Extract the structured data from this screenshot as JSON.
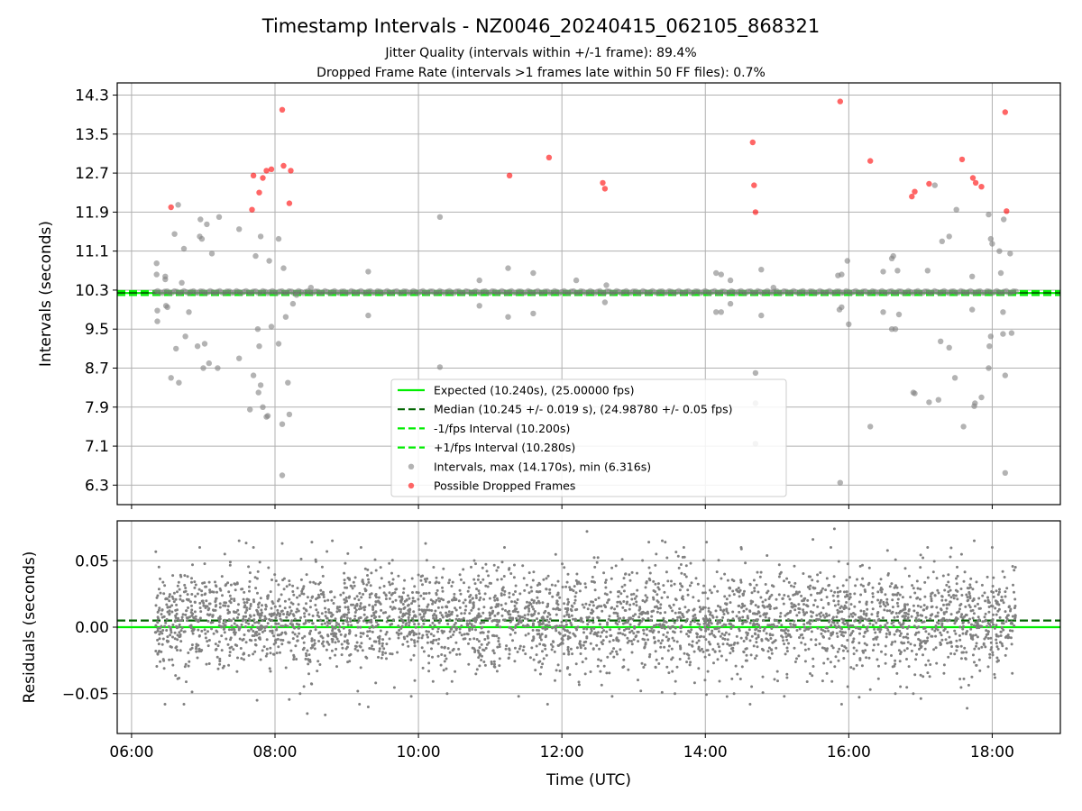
{
  "header": {
    "title": "Timestamp Intervals - NZ0046_20240415_062105_868321",
    "subtitle_1": "Jitter Quality (intervals within +/-1 frame): 89.4%",
    "subtitle_2": "Dropped Frame Rate (intervals >1 frames late within 50 FF files): 0.7%"
  },
  "colors": {
    "expected": "#00ee00",
    "median": "#006400",
    "minus_fps": "#00ee00",
    "plus_fps": "#00ee00",
    "intervals": "#808080",
    "dropped": "#ff0000",
    "grid": "#b0b0b0"
  },
  "chart_data": [
    {
      "type": "scatter",
      "ylabel": "Intervals (seconds)",
      "xlabel": "",
      "xlim": [
        5.8,
        18.95
      ],
      "ylim": [
        5.9,
        14.55
      ],
      "x_units": "hours UTC",
      "grid": true,
      "yticks": [
        6.3,
        7.1,
        7.9,
        8.7,
        9.5,
        10.3,
        11.1,
        11.9,
        12.7,
        13.5,
        14.3
      ],
      "ytick_labels": [
        "6.3",
        "7.1",
        "7.9",
        "8.7",
        "9.5",
        "10.3",
        "11.1",
        "11.9",
        "12.7",
        "13.5",
        "14.3"
      ],
      "legend_position": "lower-center",
      "hlines": [
        {
          "name": "expected",
          "y": 10.24,
          "style": "solid"
        },
        {
          "name": "median",
          "y": 10.245,
          "style": "dashed"
        },
        {
          "name": "minus_fps",
          "y": 10.2,
          "style": "dashed"
        },
        {
          "name": "plus_fps",
          "y": 10.28,
          "style": "dashed"
        }
      ],
      "legend": [
        {
          "key": "expected",
          "label": "Expected (10.240s), (25.00000 fps)",
          "kind": "line"
        },
        {
          "key": "median",
          "label": "Median (10.245 +/- 0.019 s), (24.98780 +/- 0.05 fps)",
          "kind": "dashed"
        },
        {
          "key": "minus_fps",
          "label": "-1/fps Interval (10.200s)",
          "kind": "dashed"
        },
        {
          "key": "plus_fps",
          "label": "+1/fps Interval (10.280s)",
          "kind": "dashed"
        },
        {
          "key": "intervals",
          "label": "Intervals, max (14.170s), min (6.316s)",
          "kind": "marker"
        },
        {
          "key": "dropped",
          "label": "Possible Dropped Frames",
          "kind": "marker"
        }
      ],
      "series": [
        {
          "name": "Intervals, max (14.170s), min (6.316s)",
          "key": "intervals",
          "points": [
            [
              6.35,
              10.85
            ],
            [
              6.35,
              10.62
            ],
            [
              6.36,
              9.88
            ],
            [
              6.36,
              9.66
            ],
            [
              6.47,
              10.58
            ],
            [
              6.47,
              10.52
            ],
            [
              6.48,
              9.98
            ],
            [
              6.5,
              9.95
            ],
            [
              6.55,
              8.5
            ],
            [
              6.6,
              11.45
            ],
            [
              6.62,
              9.1
            ],
            [
              6.65,
              12.05
            ],
            [
              6.66,
              8.4
            ],
            [
              6.7,
              10.45
            ],
            [
              6.73,
              11.15
            ],
            [
              6.75,
              9.35
            ],
            [
              6.8,
              9.85
            ],
            [
              6.92,
              9.15
            ],
            [
              6.95,
              11.4
            ],
            [
              6.96,
              11.75
            ],
            [
              6.98,
              11.35
            ],
            [
              7.0,
              8.7
            ],
            [
              7.02,
              9.2
            ],
            [
              7.05,
              11.65
            ],
            [
              7.08,
              8.8
            ],
            [
              7.12,
              11.05
            ],
            [
              7.2,
              8.7
            ],
            [
              7.22,
              11.8
            ],
            [
              7.5,
              11.55
            ],
            [
              7.5,
              8.9
            ],
            [
              7.65,
              7.85
            ],
            [
              7.7,
              8.55
            ],
            [
              7.73,
              11.0
            ],
            [
              7.76,
              9.5
            ],
            [
              7.77,
              8.2
            ],
            [
              7.78,
              9.15
            ],
            [
              7.8,
              8.35
            ],
            [
              7.8,
              11.4
            ],
            [
              7.83,
              7.9
            ],
            [
              7.88,
              7.7
            ],
            [
              7.9,
              7.72
            ],
            [
              7.92,
              10.9
            ],
            [
              7.95,
              9.55
            ],
            [
              8.05,
              9.2
            ],
            [
              8.05,
              11.35
            ],
            [
              8.1,
              6.5
            ],
            [
              8.1,
              7.55
            ],
            [
              8.12,
              10.75
            ],
            [
              8.15,
              9.75
            ],
            [
              8.18,
              8.4
            ],
            [
              8.2,
              7.75
            ],
            [
              8.25,
              10.02
            ],
            [
              8.3,
              10.2
            ],
            [
              8.5,
              10.35
            ],
            [
              9.3,
              10.68
            ],
            [
              9.3,
              9.78
            ],
            [
              10.3,
              11.8
            ],
            [
              10.3,
              8.72
            ],
            [
              10.85,
              10.5
            ],
            [
              10.85,
              9.98
            ],
            [
              11.25,
              10.75
            ],
            [
              11.25,
              9.75
            ],
            [
              11.6,
              10.65
            ],
            [
              11.6,
              9.82
            ],
            [
              12.2,
              10.5
            ],
            [
              12.6,
              10.05
            ],
            [
              12.62,
              10.4
            ],
            [
              14.15,
              10.65
            ],
            [
              14.15,
              9.85
            ],
            [
              14.22,
              10.62
            ],
            [
              14.22,
              9.85
            ],
            [
              14.35,
              10.5
            ],
            [
              14.35,
              10.02
            ],
            [
              14.7,
              8.6
            ],
            [
              14.7,
              7.15
            ],
            [
              14.7,
              7.98
            ],
            [
              14.78,
              10.72
            ],
            [
              14.78,
              9.78
            ],
            [
              14.95,
              10.35
            ],
            [
              15.85,
              10.6
            ],
            [
              15.87,
              9.9
            ],
            [
              15.88,
              6.35
            ],
            [
              15.9,
              10.62
            ],
            [
              15.9,
              9.95
            ],
            [
              15.98,
              10.9
            ],
            [
              16.0,
              9.6
            ],
            [
              16.3,
              7.5
            ],
            [
              16.48,
              10.68
            ],
            [
              16.48,
              9.85
            ],
            [
              16.6,
              9.5
            ],
            [
              16.6,
              10.95
            ],
            [
              16.62,
              11.0
            ],
            [
              16.65,
              9.5
            ],
            [
              16.68,
              10.7
            ],
            [
              16.7,
              9.8
            ],
            [
              16.9,
              8.2
            ],
            [
              16.92,
              8.18
            ],
            [
              17.1,
              10.7
            ],
            [
              17.12,
              8.0
            ],
            [
              17.2,
              12.45
            ],
            [
              17.25,
              8.05
            ],
            [
              17.28,
              9.25
            ],
            [
              17.3,
              11.3
            ],
            [
              17.4,
              11.4
            ],
            [
              17.4,
              9.12
            ],
            [
              17.48,
              8.5
            ],
            [
              17.5,
              11.95
            ],
            [
              17.6,
              7.5
            ],
            [
              17.72,
              10.58
            ],
            [
              17.72,
              9.9
            ],
            [
              17.75,
              7.92
            ],
            [
              17.76,
              7.98
            ],
            [
              17.85,
              8.1
            ],
            [
              17.95,
              11.85
            ],
            [
              17.95,
              8.7
            ],
            [
              17.96,
              9.15
            ],
            [
              17.98,
              11.35
            ],
            [
              17.98,
              9.35
            ],
            [
              18.0,
              11.25
            ],
            [
              18.1,
              11.1
            ],
            [
              18.12,
              10.65
            ],
            [
              18.15,
              9.4
            ],
            [
              18.15,
              9.85
            ],
            [
              18.16,
              11.75
            ],
            [
              18.18,
              8.55
            ],
            [
              18.18,
              6.55
            ],
            [
              18.25,
              11.05
            ],
            [
              18.27,
              9.42
            ]
          ]
        },
        {
          "name": "Possible Dropped Frames",
          "key": "dropped",
          "points": [
            [
              6.55,
              12.0
            ],
            [
              7.68,
              11.95
            ],
            [
              7.7,
              12.65
            ],
            [
              7.78,
              12.3
            ],
            [
              7.83,
              12.6
            ],
            [
              7.88,
              12.75
            ],
            [
              7.95,
              12.78
            ],
            [
              8.1,
              14.0
            ],
            [
              8.12,
              12.85
            ],
            [
              8.2,
              12.08
            ],
            [
              8.22,
              12.75
            ],
            [
              11.27,
              12.65
            ],
            [
              11.82,
              13.02
            ],
            [
              12.57,
              12.5
            ],
            [
              12.6,
              12.38
            ],
            [
              14.66,
              13.33
            ],
            [
              14.68,
              12.45
            ],
            [
              14.7,
              11.9
            ],
            [
              15.88,
              14.17
            ],
            [
              16.3,
              12.95
            ],
            [
              16.88,
              12.22
            ],
            [
              16.92,
              12.32
            ],
            [
              17.12,
              12.48
            ],
            [
              17.58,
              12.98
            ],
            [
              17.73,
              12.6
            ],
            [
              17.77,
              12.5
            ],
            [
              17.85,
              12.42
            ],
            [
              18.18,
              13.95
            ],
            [
              18.2,
              11.92
            ]
          ]
        }
      ]
    },
    {
      "type": "scatter",
      "ylabel": "Residuals (seconds)",
      "xlabel": "Time (UTC)",
      "xlim": [
        5.8,
        18.95
      ],
      "ylim": [
        -0.08,
        0.08
      ],
      "x_units": "hours UTC",
      "grid": true,
      "xticks": [
        6,
        8,
        10,
        12,
        14,
        16,
        18
      ],
      "xtick_labels": [
        "06:00",
        "08:00",
        "10:00",
        "12:00",
        "14:00",
        "16:00",
        "18:00"
      ],
      "yticks": [
        0.05,
        0.0,
        -0.05
      ],
      "ytick_labels": [
        "0.05",
        "0.00",
        "−0.05"
      ],
      "hlines": [
        {
          "name": "expected",
          "y": 0.0,
          "style": "solid"
        },
        {
          "name": "median",
          "y": 0.005,
          "style": "dashed"
        }
      ],
      "series": [
        {
          "key": "intervals",
          "x_range": [
            6.33,
            18.33
          ],
          "count": 3700,
          "center": 0.005,
          "std": 0.019,
          "range": [
            -0.068,
            0.074
          ],
          "highlighted_points": [
            [
              6.85,
              0.047
            ],
            [
              6.95,
              0.06
            ],
            [
              7.3,
              0.055
            ],
            [
              7.5,
              0.065
            ],
            [
              7.7,
              0.06
            ],
            [
              7.75,
              -0.055
            ],
            [
              8.1,
              0.063
            ],
            [
              8.35,
              -0.05
            ],
            [
              8.45,
              -0.065
            ],
            [
              8.7,
              -0.066
            ],
            [
              8.8,
              0.065
            ],
            [
              9.2,
              0.06
            ],
            [
              9.3,
              -0.06
            ],
            [
              9.9,
              -0.052
            ],
            [
              10.1,
              0.063
            ],
            [
              10.4,
              -0.05
            ],
            [
              11.2,
              0.06
            ],
            [
              11.8,
              -0.058
            ],
            [
              12.35,
              0.072
            ],
            [
              12.7,
              -0.052
            ],
            [
              13.1,
              -0.048
            ],
            [
              13.4,
              0.065
            ],
            [
              13.7,
              0.06
            ],
            [
              14.4,
              -0.05
            ],
            [
              14.5,
              0.06
            ],
            [
              15.1,
              -0.052
            ],
            [
              15.5,
              0.066
            ],
            [
              15.75,
              0.06
            ],
            [
              15.8,
              0.074
            ],
            [
              15.9,
              -0.058
            ],
            [
              16.3,
              -0.047
            ],
            [
              16.65,
              -0.05
            ],
            [
              16.9,
              -0.05
            ],
            [
              17.1,
              0.06
            ],
            [
              17.65,
              -0.061
            ],
            [
              17.75,
              0.065
            ],
            [
              18.0,
              0.06
            ]
          ]
        }
      ]
    }
  ]
}
